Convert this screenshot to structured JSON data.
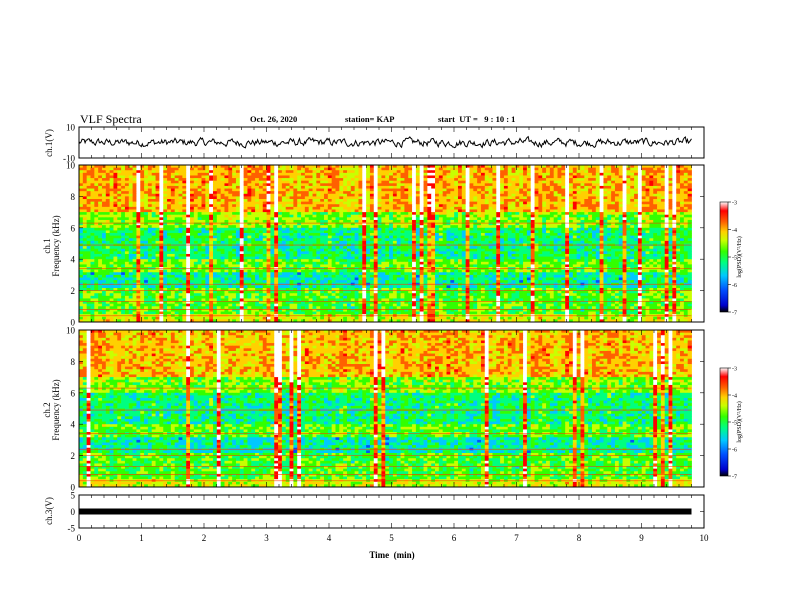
{
  "header": {
    "title": "VLF Spectra",
    "date": "Oct. 26, 2020",
    "station": "station= KAP",
    "start_ut": "start  UT =   9 : 10 : 1"
  },
  "colors": {
    "waveform": "#000000",
    "colormap": [
      "#000000",
      "#0000cc",
      "#0050ff",
      "#00c8ff",
      "#00ff80",
      "#33ff00",
      "#c8ff00",
      "#ffd000",
      "#ff6000",
      "#ff0000",
      "#ffffff"
    ]
  },
  "chart_data": [
    {
      "type": "line",
      "panel": "ch1-waveform",
      "ylabel": "ch.1(V)",
      "yticks": [
        "10",
        "-10"
      ],
      "ylim": [
        -10,
        10
      ],
      "xlim": [
        0,
        10
      ],
      "note_values": "noisy signal fluctuating roughly between -4 and 4 V over 0–9.8 min"
    },
    {
      "type": "heatmap",
      "panel": "ch1-spectrogram",
      "ylabel": "ch.1\nFrequency  (kHz)",
      "yticks": [
        "0",
        "2",
        "4",
        "6",
        "8",
        "10"
      ],
      "ylim": [
        0,
        10
      ],
      "xlim": [
        0,
        10
      ],
      "data_end_min": 9.8,
      "colorbar": {
        "label": "log(PSD)(V²/Hz)",
        "ticks": [
          "-3",
          "-4",
          "-5",
          "-6",
          "-7"
        ],
        "range": [
          -7,
          -3
        ]
      }
    },
    {
      "type": "heatmap",
      "panel": "ch2-spectrogram",
      "ylabel": "ch.2\nFrequency  (kHz)",
      "yticks": [
        "0",
        "2",
        "4",
        "6",
        "8",
        "10"
      ],
      "ylim": [
        0,
        10
      ],
      "xlim": [
        0,
        10
      ],
      "data_end_min": 9.8,
      "colorbar": {
        "label": "log(PSD)(V²/Hz)",
        "ticks": [
          "-3",
          "-4",
          "-5",
          "-6",
          "-7"
        ],
        "range": [
          -7,
          -3
        ]
      }
    },
    {
      "type": "line",
      "panel": "ch3-waveform",
      "ylabel": "ch.3(V)",
      "yticks": [
        "5",
        "0",
        "-5"
      ],
      "ylim": [
        -5,
        5
      ],
      "xlim": [
        0,
        10
      ],
      "value": 0,
      "xlabel": "Time  (min)",
      "xticks": [
        "0",
        "1",
        "2",
        "3",
        "4",
        "5",
        "6",
        "7",
        "8",
        "9",
        "10"
      ]
    }
  ]
}
